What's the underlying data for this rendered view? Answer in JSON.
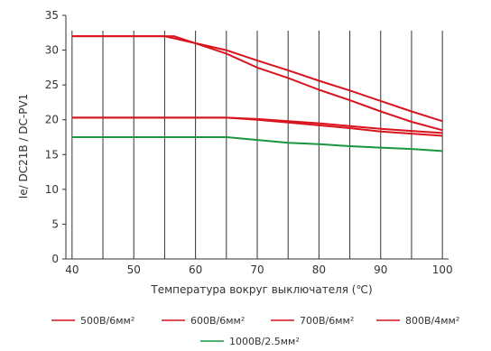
{
  "chart_data": {
    "type": "line",
    "title": "",
    "xlabel": "Температура вокруг выключателя (℃)",
    "ylabel": "Ie/ DC21B / DC-PV1",
    "xlim": [
      39,
      101
    ],
    "ylim": [
      0,
      35
    ],
    "x_ticks": [
      40,
      50,
      60,
      70,
      80,
      90,
      100
    ],
    "y_ticks": [
      0,
      5,
      10,
      15,
      20,
      25,
      30,
      35
    ],
    "vertical_grid_x": [
      40,
      45,
      50,
      55,
      60,
      65,
      70,
      75,
      80,
      85,
      90,
      95,
      100
    ],
    "grid": "vertical lines only",
    "legend_position": "bottom",
    "series": [
      {
        "name": "500В/6мм²",
        "color": "#d9141e",
        "x": [
          40,
          50,
          55,
          60,
          65,
          70,
          75,
          80,
          85,
          90,
          95,
          100
        ],
        "y": [
          32,
          32,
          32,
          31,
          30,
          28.5,
          27.1,
          25.6,
          24.2,
          22.7,
          21.2,
          19.8
        ]
      },
      {
        "name": "600В/6мм²",
        "color": "#d9141e",
        "x": [
          40,
          56.5,
          65,
          70,
          75,
          80,
          85,
          90,
          95,
          100
        ],
        "y": [
          32,
          32,
          29.5,
          27.5,
          26,
          24.3,
          22.8,
          21.2,
          19.7,
          18.5
        ]
      },
      {
        "name": "700В/6мм²",
        "color": "#d9141e",
        "x": [
          40,
          50,
          60,
          65,
          70,
          75,
          80,
          85,
          90,
          95,
          100
        ],
        "y": [
          20.3,
          20.3,
          20.3,
          20.3,
          20.1,
          19.8,
          19.5,
          19.1,
          18.7,
          18.4,
          18.1
        ]
      },
      {
        "name": "800В/4мм²",
        "color": "#d9141e",
        "x": [
          40,
          50,
          60,
          65,
          70,
          75,
          80,
          85,
          90,
          95,
          100
        ],
        "y": [
          20.3,
          20.3,
          20.3,
          20.3,
          20.0,
          19.6,
          19.2,
          18.8,
          18.3,
          18.0,
          17.7
        ]
      },
      {
        "name": "1000В/2.5мм²",
        "color": "#1a9641",
        "x": [
          40,
          50,
          60,
          65,
          70,
          75,
          80,
          85,
          90,
          95,
          100
        ],
        "y": [
          17.5,
          17.5,
          17.5,
          17.5,
          17.1,
          16.7,
          16.5,
          16.2,
          16.0,
          15.8,
          15.5
        ]
      }
    ]
  }
}
